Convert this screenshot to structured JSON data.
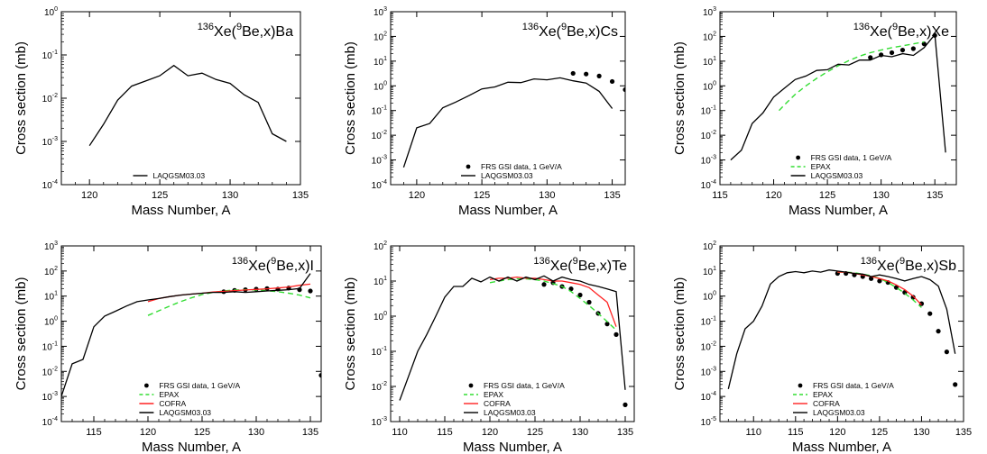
{
  "chart_data": [
    {
      "type": "line",
      "title": "Xe(Be,x)Ba",
      "reaction": {
        "proj_mass": "136",
        "proj": "Xe",
        "target_mass": "9",
        "target": "Be",
        "product": "Ba"
      },
      "xlabel": "Mass Number, A",
      "ylabel": "Cross section (mb)",
      "xlim": [
        118,
        135
      ],
      "ylim_exp": [
        -4,
        0
      ],
      "log_y": true,
      "xticks": [
        120,
        125,
        130,
        135
      ],
      "legend_position": "bottom-center",
      "series": [
        {
          "name": "LAQGSM03.03",
          "style": "line",
          "color": "#000000",
          "x": [
            120,
            121,
            122,
            123,
            124,
            125,
            126,
            127,
            128,
            129,
            130,
            131,
            132,
            133,
            134
          ],
          "y": [
            0.0008,
            0.0025,
            0.009,
            0.019,
            0.025,
            0.033,
            0.057,
            0.033,
            0.038,
            0.027,
            0.022,
            0.012,
            0.008,
            0.0015,
            0.001
          ]
        }
      ]
    },
    {
      "type": "line",
      "title": "Xe(Be,x)Cs",
      "reaction": {
        "proj_mass": "136",
        "proj": "Xe",
        "target_mass": "9",
        "target": "Be",
        "product": "Cs"
      },
      "xlabel": "Mass Number, A",
      "ylabel": "Cross section (mb)",
      "xlim": [
        118,
        136
      ],
      "ylim_exp": [
        -4,
        3
      ],
      "log_y": true,
      "xticks": [
        120,
        125,
        130,
        135
      ],
      "legend_position": "bottom-center",
      "series": [
        {
          "name": "FRS GSI data, 1 GeV/A",
          "style": "dots",
          "color": "#000000",
          "x": [
            132,
            133,
            134,
            135,
            136
          ],
          "y": [
            3.2,
            3.0,
            2.5,
            1.5,
            0.7
          ]
        },
        {
          "name": "LAQGSM03.03",
          "style": "line",
          "color": "#000000",
          "x": [
            119,
            120,
            121,
            122,
            123,
            124,
            125,
            126,
            127,
            128,
            129,
            130,
            131,
            132,
            133,
            134,
            135
          ],
          "y": [
            0.0005,
            0.02,
            0.03,
            0.13,
            0.22,
            0.4,
            0.75,
            0.9,
            1.4,
            1.35,
            1.9,
            1.75,
            2.1,
            1.6,
            1.3,
            0.6,
            0.12
          ]
        }
      ]
    },
    {
      "type": "line",
      "title": "Xe(Be,x)Xe",
      "reaction": {
        "proj_mass": "136",
        "proj": "Xe",
        "target_mass": "9",
        "target": "Be",
        "product": "Xe"
      },
      "xlabel": "Mass Number, A",
      "ylabel": "Cross section (mb)",
      "xlim": [
        115,
        137
      ],
      "ylim_exp": [
        -4,
        3
      ],
      "log_y": true,
      "xticks": [
        115,
        120,
        125,
        130,
        135
      ],
      "legend_position": "bottom-center",
      "series": [
        {
          "name": "FRS GSI data, 1 GeV/A",
          "style": "dots",
          "color": "#000000",
          "x": [
            129,
            130,
            131,
            132,
            133,
            134,
            135
          ],
          "y": [
            14,
            18,
            22,
            28,
            32,
            50,
            110
          ]
        },
        {
          "name": "EPAX",
          "style": "dashed",
          "color": "#33dd33",
          "x": [
            120.5,
            121,
            122,
            123,
            124,
            125,
            126,
            127,
            128,
            129,
            130,
            131,
            132,
            133,
            134
          ],
          "y": [
            0.1,
            0.17,
            0.45,
            1.0,
            2.0,
            3.7,
            6.5,
            10.5,
            16,
            22,
            28,
            35,
            42,
            50,
            60
          ]
        },
        {
          "name": "LAQGSM03.03",
          "style": "line",
          "color": "#000000",
          "x": [
            116,
            117,
            118,
            119,
            120,
            121,
            122,
            123,
            124,
            125,
            126,
            127,
            128,
            129,
            130,
            131,
            132,
            133,
            134,
            135,
            136
          ],
          "y": [
            0.001,
            0.0025,
            0.03,
            0.08,
            0.35,
            0.8,
            1.8,
            2.5,
            4.2,
            4.5,
            7.5,
            7.0,
            11,
            11,
            17,
            15,
            20,
            17,
            35,
            120,
            0.002
          ]
        }
      ]
    },
    {
      "type": "line",
      "title": "Xe(Be,x)I",
      "reaction": {
        "proj_mass": "136",
        "proj": "Xe",
        "target_mass": "9",
        "target": "Be",
        "product": "I"
      },
      "xlabel": "Mass Number, A",
      "ylabel": "Cross section (mb)",
      "xlim": [
        112,
        136
      ],
      "ylim_exp": [
        -4,
        3
      ],
      "log_y": true,
      "xticks": [
        115,
        120,
        125,
        130,
        135
      ],
      "legend_position": "bottom-center",
      "series": [
        {
          "name": "FRS GSI data, 1 GeV/A",
          "style": "dots",
          "color": "#000000",
          "x": [
            127,
            128,
            129,
            130,
            131,
            132,
            133,
            134,
            135,
            136
          ],
          "y": [
            15,
            17,
            18,
            19,
            20,
            19,
            21,
            18,
            16,
            0.007
          ]
        },
        {
          "name": "EPAX",
          "style": "dashed",
          "color": "#33dd33",
          "x": [
            120,
            121,
            122,
            123,
            124,
            125,
            126,
            127,
            128,
            129,
            130,
            131,
            132,
            133,
            134,
            135
          ],
          "y": [
            1.7,
            2.6,
            4.0,
            6.0,
            8.5,
            11.5,
            14,
            16,
            17.5,
            18,
            17.5,
            16.5,
            15,
            13,
            11,
            8.5
          ]
        },
        {
          "name": "COFRA",
          "style": "line",
          "color": "#ff2222",
          "x": [
            120,
            121,
            122,
            123,
            124,
            125,
            126,
            127,
            128,
            129,
            130,
            131,
            132,
            133,
            134,
            135
          ],
          "y": [
            6,
            8,
            9.5,
            11,
            12,
            13,
            14.5,
            15.5,
            16.5,
            17.5,
            18.5,
            19.5,
            21,
            23,
            27,
            30
          ]
        },
        {
          "name": "LAQGSM03.03",
          "style": "line",
          "color": "#000000",
          "x": [
            112,
            113,
            114,
            115,
            116,
            117,
            118,
            119,
            120,
            121,
            122,
            123,
            124,
            125,
            126,
            127,
            128,
            129,
            130,
            131,
            132,
            133,
            134,
            135
          ],
          "y": [
            0.001,
            0.02,
            0.03,
            0.6,
            1.6,
            2.5,
            4.0,
            6.0,
            7.0,
            8.0,
            9.5,
            11,
            12,
            13,
            14,
            14,
            15,
            14,
            15,
            16,
            17,
            18,
            20,
            80
          ]
        }
      ]
    },
    {
      "type": "line",
      "title": "Xe(Be,x)Te",
      "reaction": {
        "proj_mass": "136",
        "proj": "Xe",
        "target_mass": "9",
        "target": "Be",
        "product": "Te"
      },
      "xlabel": "Mass Number, A",
      "ylabel": "Cross section (mb)",
      "xlim": [
        109,
        136
      ],
      "ylim_exp": [
        -3,
        2
      ],
      "log_y": true,
      "xticks": [
        110,
        115,
        120,
        125,
        130,
        135
      ],
      "legend_position": "bottom-center",
      "series": [
        {
          "name": "FRS GSI data, 1 GeV/A",
          "style": "dots",
          "color": "#000000",
          "x": [
            126,
            127,
            128,
            129,
            130,
            131,
            132,
            133,
            134,
            135
          ],
          "y": [
            8,
            9,
            7,
            6,
            4,
            2.5,
            1.2,
            0.6,
            0.3,
            0.003
          ]
        },
        {
          "name": "EPAX",
          "style": "dashed",
          "color": "#33dd33",
          "x": [
            120,
            121,
            122,
            123,
            124,
            125,
            126,
            127,
            128,
            129,
            130,
            131,
            132,
            133,
            134
          ],
          "y": [
            9,
            10,
            11,
            11.5,
            11.5,
            11,
            10,
            8.5,
            7,
            5,
            3.2,
            2.0,
            1.2,
            0.7,
            0.4
          ]
        },
        {
          "name": "COFRA",
          "style": "line",
          "color": "#ff2222",
          "x": [
            120,
            121,
            122,
            123,
            124,
            125,
            126,
            127,
            128,
            129,
            130,
            131,
            132,
            133,
            134
          ],
          "y": [
            11,
            12,
            12,
            13,
            12,
            12,
            11,
            10,
            10,
            9,
            8,
            6.5,
            4.0,
            2.5,
            0.5
          ]
        },
        {
          "name": "LAQGSM03.03",
          "style": "line",
          "color": "#000000",
          "x": [
            110,
            111,
            112,
            113,
            114,
            115,
            116,
            117,
            118,
            119,
            120,
            121,
            122,
            123,
            124,
            125,
            126,
            127,
            128,
            129,
            130,
            131,
            132,
            133,
            134,
            135
          ],
          "y": [
            0.004,
            0.02,
            0.1,
            0.3,
            1.0,
            3.5,
            7.0,
            7.0,
            12,
            9.5,
            13,
            10,
            13,
            10,
            13,
            11,
            14,
            10,
            13,
            11,
            10,
            8,
            7,
            6,
            5,
            0.008
          ]
        }
      ]
    },
    {
      "type": "line",
      "title": "Xe(Be,x)Sb",
      "reaction": {
        "proj_mass": "136",
        "proj": "Xe",
        "target_mass": "9",
        "target": "Be",
        "product": "Sb"
      },
      "xlabel": "Mass Number, A",
      "ylabel": "Cross section (mb)",
      "xlim": [
        106,
        135
      ],
      "ylim_exp": [
        -5,
        2
      ],
      "log_y": true,
      "xticks": [
        110,
        115,
        120,
        125,
        130,
        135
      ],
      "legend_position": "bottom-center",
      "series": [
        {
          "name": "FRS GSI data, 1 GeV/A",
          "style": "dots",
          "color": "#000000",
          "x": [
            120,
            121,
            122,
            123,
            124,
            125,
            126,
            127,
            128,
            129,
            130,
            131,
            132,
            133,
            134
          ],
          "y": [
            8,
            8,
            7,
            6,
            5,
            4,
            3.5,
            2.2,
            1.4,
            0.9,
            0.5,
            0.2,
            0.04,
            0.006,
            0.0003
          ]
        },
        {
          "name": "EPAX",
          "style": "dashed",
          "color": "#33dd33",
          "x": [
            120,
            121,
            122,
            123,
            124,
            125,
            126,
            127,
            128,
            129,
            130
          ],
          "y": [
            9,
            9,
            8.5,
            7.5,
            6.5,
            5,
            3.5,
            2.2,
            1.3,
            0.7,
            0.35
          ]
        },
        {
          "name": "COFRA",
          "style": "line",
          "color": "#ff2222",
          "x": [
            120,
            121,
            122,
            123,
            124,
            125,
            126,
            127,
            128,
            129,
            130
          ],
          "y": [
            9,
            9,
            8,
            7,
            6,
            5,
            4,
            2.8,
            1.8,
            1.0,
            0.45
          ]
        },
        {
          "name": "LAQGSM03.03",
          "style": "line",
          "color": "#000000",
          "x": [
            107,
            108,
            109,
            110,
            111,
            112,
            113,
            114,
            115,
            116,
            117,
            118,
            119,
            120,
            121,
            122,
            123,
            124,
            125,
            126,
            127,
            128,
            129,
            130,
            131,
            132,
            133,
            134
          ],
          "y": [
            0.0002,
            0.005,
            0.05,
            0.1,
            0.4,
            3.0,
            6.0,
            8.5,
            9.5,
            8.5,
            10,
            9,
            11,
            10,
            9,
            8,
            7.5,
            6,
            7,
            6,
            5,
            4,
            5,
            6,
            4.5,
            2.5,
            0.3,
            0.005
          ]
        }
      ]
    }
  ]
}
